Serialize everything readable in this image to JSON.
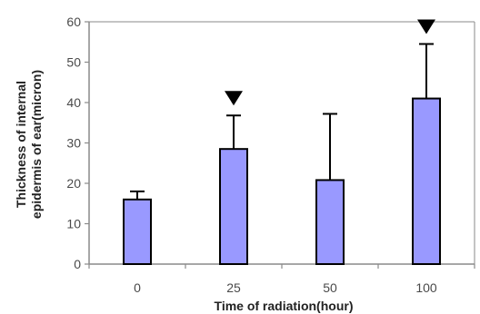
{
  "chart_data": {
    "type": "bar",
    "title": "",
    "categories": [
      "0",
      "25",
      "50",
      "100"
    ],
    "values": [
      16,
      28.5,
      20.8,
      41
    ],
    "error_upper": [
      18,
      36.8,
      37.2,
      54.5
    ],
    "significance_markers": [
      false,
      true,
      false,
      true
    ],
    "xlabel": "Time of radiation(hour)",
    "ylabel_lines": [
      "Thickness of internal",
      "epidermis of ear(micron)"
    ],
    "ylim": [
      0,
      60
    ],
    "yticks": [
      0,
      10,
      20,
      30,
      40,
      50,
      60
    ],
    "grid": false,
    "legend": "none",
    "colors": {
      "bar_fill": "#9999ff",
      "bar_stroke": "#000000",
      "axis": "#8a8a8a",
      "error_bar": "#000000",
      "marker": "#000000",
      "frame": "#8a8a8a"
    }
  }
}
